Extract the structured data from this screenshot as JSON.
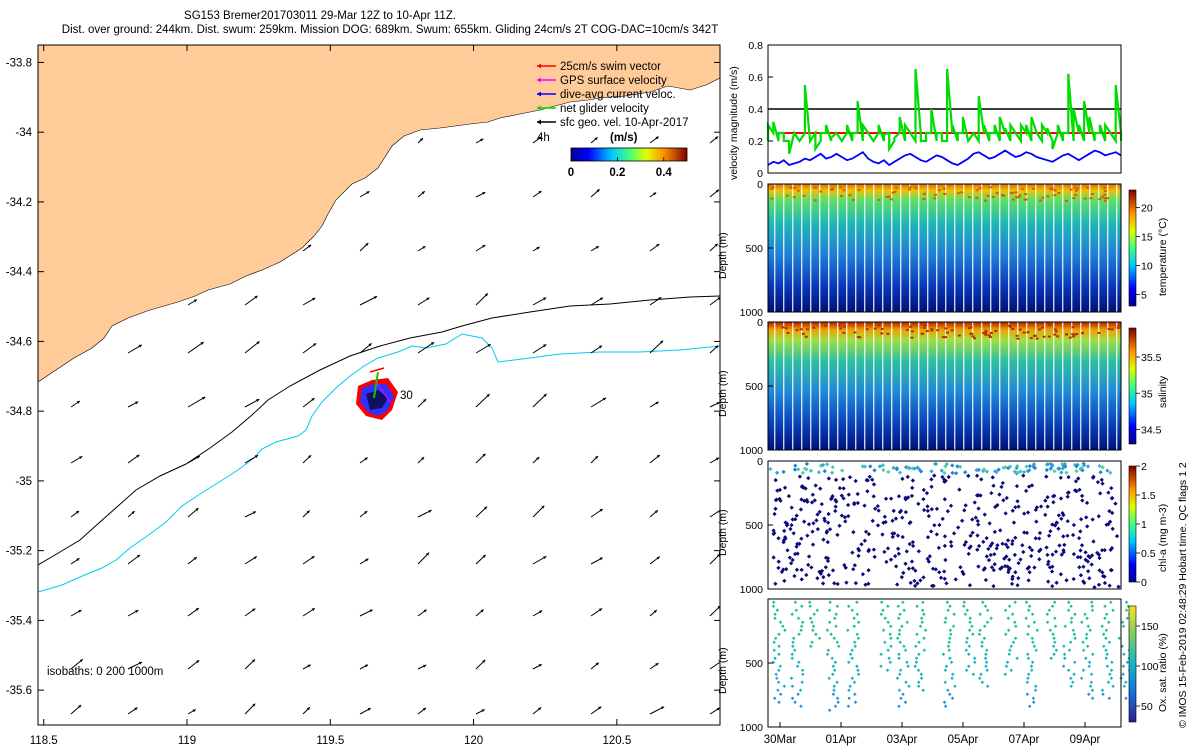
{
  "header": {
    "line1": "SG153 Bremer201703011 29-Mar 12Z to 10-Apr 11Z.",
    "line2": "Dist. over ground: 244km. Dist. swum: 259km. Mission DOG: 689km. Swum: 655km. Gliding 24cm/s 2T COG-DAC=10cm/s 342T"
  },
  "credit": "© IMOS 15-Feb-2019 02:48:29 Hobart time. QC flags 1  2",
  "chart_data": [
    {
      "type": "map",
      "name": "glider track and surface currents",
      "lon_ticks": [
        "118.5",
        "119",
        "119.5",
        "120",
        "120.5"
      ],
      "lat_ticks": [
        "-33.8",
        "-34",
        "-34.2",
        "-34.4",
        "-34.6",
        "-34.8",
        "-35",
        "-35.2",
        "-35.4",
        "-35.6"
      ],
      "xlim": [
        118.48,
        120.86
      ],
      "ylim": [
        -35.7,
        -33.75
      ],
      "legend": [
        {
          "label": "25cm/s swim vector",
          "color": "#ff0000"
        },
        {
          "label": "GPS surface velocity",
          "color": "#ff00ff"
        },
        {
          "label": "dive-avg current veloc.",
          "color": "#0000ff"
        },
        {
          "label": "net glider velocity",
          "color": "#00dd00"
        },
        {
          "label": "sfc geo. vel. 10-Apr-2017",
          "color": "#000000"
        }
      ],
      "time_label": "4h",
      "colorbar": {
        "title": "(m/s)",
        "ticks": [
          "0",
          "0.2",
          "0.4"
        ],
        "range": [
          0,
          0.5
        ]
      },
      "annotation": "30",
      "isobath_label": "isobaths: 0   200  1000m",
      "land_color": "#ffcc99",
      "isobath_200_color": "#000000",
      "isobath_1000_color": "#00ccee",
      "glider_position": [
        119.65,
        -34.79
      ]
    },
    {
      "type": "line",
      "name": "velocity magnitude",
      "ylabel": "velocity magnitude (m/s)",
      "ylim": [
        0,
        0.8
      ],
      "yticks": [
        "0",
        "0.2",
        "0.4",
        "0.6",
        "0.8"
      ],
      "series": [
        {
          "name": "reference",
          "color": "#000000",
          "value": 0.4
        },
        {
          "name": "swim",
          "color": "#ff0000",
          "value": 0.25
        },
        {
          "name": "net glider velocity",
          "color": "#00dd00",
          "values": [
            0.3,
            0.32,
            0.25,
            0.2,
            0.12,
            0.25,
            0.2,
            0.55,
            0.2,
            0.15,
            0.25,
            0.3,
            0.22,
            0.25,
            0.2,
            0.3,
            0.25,
            0.45,
            0.3,
            0.25,
            0.2,
            0.3,
            0.24,
            0.15,
            0.22,
            0.35,
            0.3,
            0.25,
            0.65,
            0.2,
            0.25,
            0.4,
            0.25,
            0.2,
            0.65,
            0.3,
            0.25,
            0.35,
            0.2,
            0.25,
            0.48,
            0.3,
            0.25,
            0.3,
            0.35,
            0.28,
            0.3,
            0.25,
            0.3,
            0.3,
            0.35,
            0.25,
            0.3,
            0.28,
            0.15,
            0.3,
            0.25,
            0.62,
            0.4,
            0.3,
            0.45,
            0.35,
            0.25,
            0.3,
            0.3,
            0.25,
            0.55,
            0.2
          ]
        },
        {
          "name": "dive-avg current",
          "color": "#0000ff",
          "values": [
            0.05,
            0.07,
            0.06,
            0.08,
            0.05,
            0.06,
            0.07,
            0.09,
            0.08,
            0.1,
            0.12,
            0.09,
            0.1,
            0.12,
            0.1,
            0.08,
            0.09,
            0.11,
            0.13,
            0.09,
            0.07,
            0.06,
            0.08,
            0.05,
            0.07,
            0.09,
            0.11,
            0.12,
            0.1,
            0.08,
            0.07,
            0.09,
            0.11,
            0.1,
            0.08,
            0.06,
            0.05,
            0.07,
            0.09,
            0.12,
            0.13,
            0.11,
            0.09,
            0.1,
            0.12,
            0.14,
            0.12,
            0.1,
            0.11,
            0.13,
            0.12,
            0.1,
            0.09,
            0.08,
            0.07,
            0.09,
            0.11,
            0.12,
            0.1,
            0.08,
            0.1,
            0.12,
            0.14,
            0.13,
            0.11,
            0.12,
            0.13,
            0.11
          ]
        }
      ]
    },
    {
      "type": "heatmap",
      "name": "temperature section",
      "ylabel": "Depth (m)",
      "ylim": [
        1000,
        0
      ],
      "yticks": [
        "0",
        "500",
        "1000"
      ],
      "colorbar_label": "temperature (°C)",
      "colorbar_ticks": [
        "5",
        "10",
        "15",
        "20"
      ],
      "clim": [
        3,
        23
      ]
    },
    {
      "type": "heatmap",
      "name": "salinity section",
      "ylabel": "Depth (m)",
      "ylim": [
        1000,
        0
      ],
      "yticks": [
        "0",
        "500",
        "1000"
      ],
      "colorbar_label": "salinity",
      "colorbar_ticks": [
        "34.5",
        "35",
        "35.5"
      ],
      "clim": [
        34.3,
        35.9
      ]
    },
    {
      "type": "scatter",
      "name": "chlorophyll-a section",
      "ylabel": "Depth (m)",
      "ylim": [
        1000,
        0
      ],
      "yticks": [
        "0",
        "500",
        "1000"
      ],
      "colorbar_label": "chl-a (mg m-3)",
      "colorbar_ticks": [
        "0",
        "0.5",
        "1",
        "1.5",
        "2"
      ],
      "clim": [
        0,
        2
      ]
    },
    {
      "type": "scatter",
      "name": "oxygen saturation section",
      "ylabel": "Depth (m)",
      "ylim": [
        1000,
        0
      ],
      "yticks": [
        "500",
        "1000"
      ],
      "colorbar_label": "Ox. sat. ratio (%)",
      "colorbar_ticks": [
        "50",
        "100",
        "150"
      ],
      "clim": [
        30,
        175
      ],
      "xticks": [
        "30Mar",
        "01Apr",
        "03Apr",
        "05Apr",
        "07Apr",
        "09Apr"
      ]
    }
  ]
}
